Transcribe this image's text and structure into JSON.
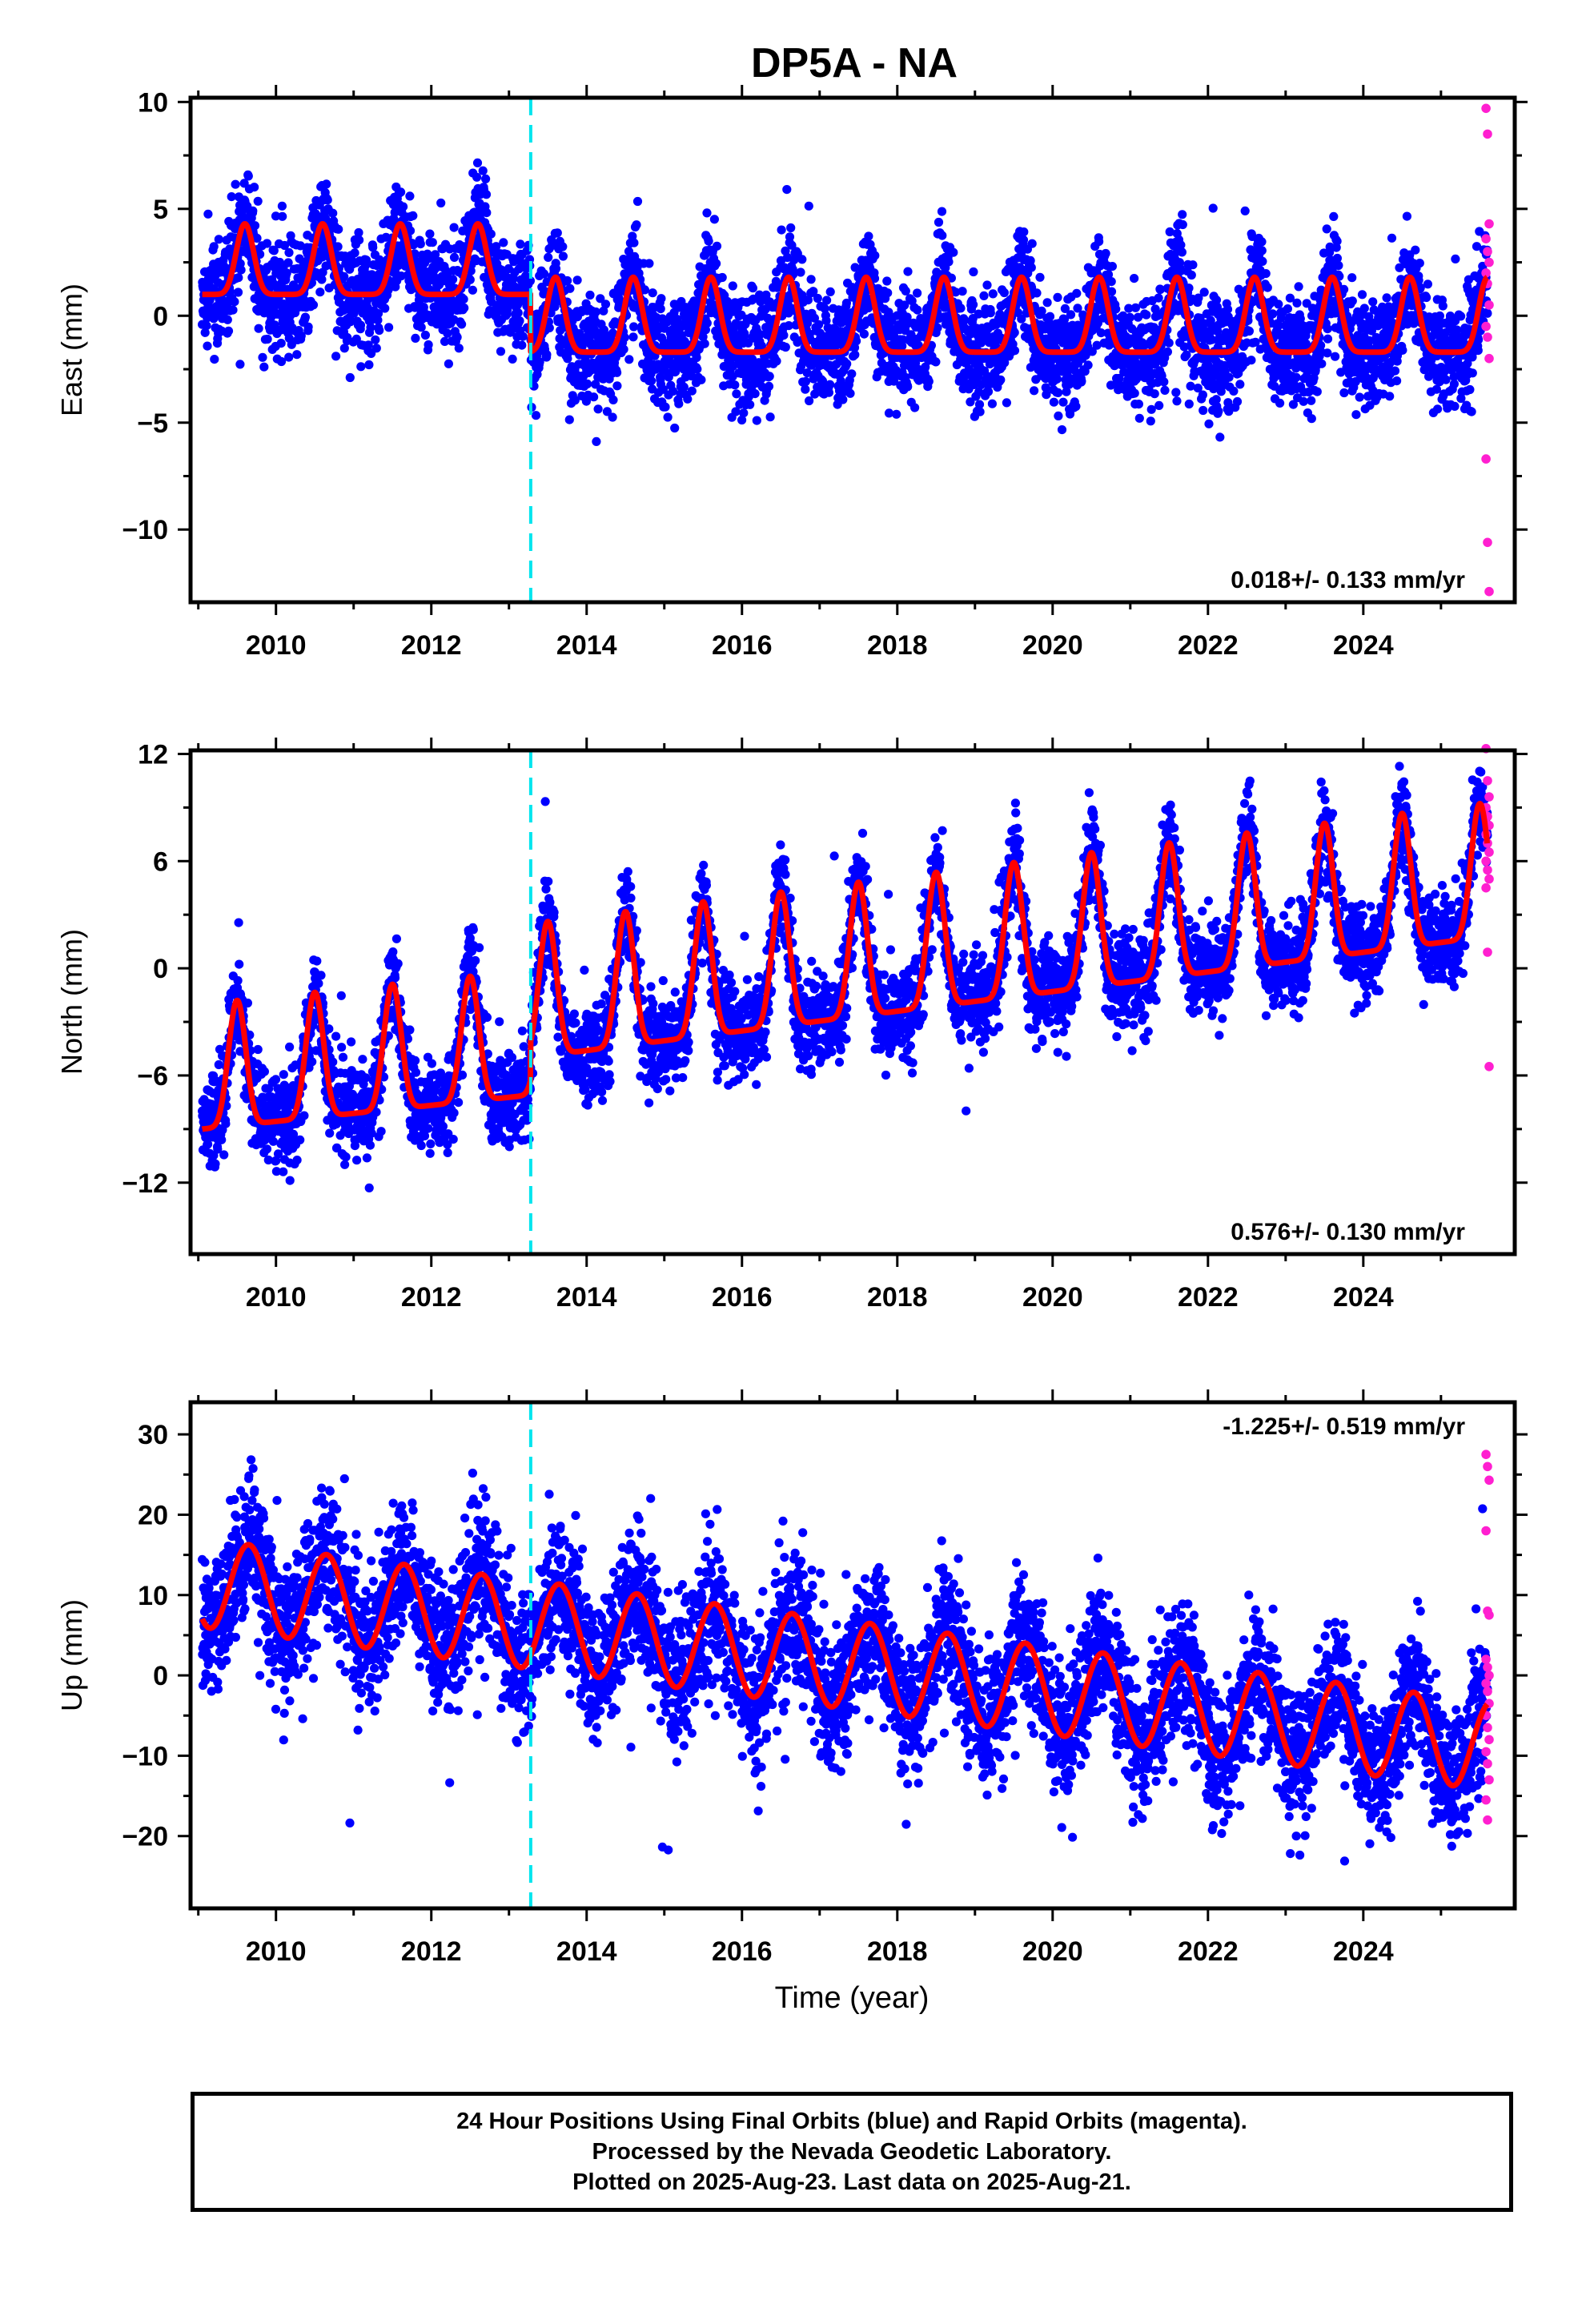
{
  "title": "DP5A - NA",
  "xlabel": "Time (year)",
  "x_ticks": [
    "2010",
    "2012",
    "2014",
    "2016",
    "2018",
    "2020",
    "2022",
    "2024"
  ],
  "colors": {
    "final": "#0000ff",
    "rapid": "#ff1fd0",
    "model": "#ff0000",
    "break": "#00e5ee"
  },
  "caption": {
    "line1": "24 Hour Positions Using Final Orbits (blue) and Rapid Orbits (magenta).",
    "line2": "Processed by the Nevada Geodetic Laboratory.",
    "line3": "Plotted on 2025-Aug-23. Last data on 2025-Aug-21."
  },
  "chart_data": [
    {
      "type": "scatter",
      "ylabel": "East (mm)",
      "rate_label": "0.018+/- 0.133 mm/yr",
      "rate_position": "bottom-right",
      "xlim": [
        2008.9,
        2025.95
      ],
      "ylim": [
        -13.4,
        10.2
      ],
      "y_ticks": [
        10,
        5,
        0,
        -5,
        -10
      ],
      "y_tick_labels": [
        "10",
        "5",
        "0",
        "−5",
        "−10"
      ],
      "break_epoch": 2013.28,
      "model": {
        "segments": [
          {
            "from": 2009.05,
            "to": 2013.28,
            "base": 1.0,
            "peak": 4.3,
            "peak_phase": 0.6,
            "sharpness": 4
          },
          {
            "from": 2013.28,
            "to": 2025.6,
            "base": -1.7,
            "peak": 1.8,
            "peak_phase": 0.6,
            "sharpness": 4
          }
        ]
      },
      "scatter_sigma": 1.3,
      "daily_range": [
        -6.0,
        8.0
      ],
      "rapid_values": [
        9.7,
        8.5,
        4.3,
        3.6,
        3.0,
        2.5,
        2.0,
        1.5,
        0.5,
        -0.5,
        -1.0,
        -2.0,
        -6.7,
        -10.6,
        -12.9
      ]
    },
    {
      "type": "scatter",
      "ylabel": "North (mm)",
      "rate_label": "0.576+/- 0.130 mm/yr",
      "rate_position": "bottom-right",
      "xlim": [
        2008.9,
        2025.95
      ],
      "ylim": [
        -16.0,
        12.2
      ],
      "y_ticks": [
        12,
        6,
        0,
        -6,
        -12
      ],
      "y_tick_labels": [
        "12",
        "6",
        "0",
        "−6",
        "−12"
      ],
      "break_epoch": 2013.28,
      "model": {
        "segments": [
          {
            "from": 2009.05,
            "to": 2013.28,
            "start": -9.0,
            "rate": 0.45,
            "peak_amp": 7.0,
            "peak_phase": 0.5,
            "sharpness": 4
          },
          {
            "from": 2013.28,
            "to": 2025.6,
            "start": -5.0,
            "rate": 0.55,
            "peak_amp": 7.5,
            "peak_phase": 0.5,
            "sharpness": 4
          }
        ]
      },
      "scatter_sigma": 1.3,
      "daily_range": [
        -15.5,
        11.4
      ],
      "rapid_values": [
        12.3,
        10.5,
        9.6,
        9.0,
        8.5,
        8.0,
        7.5,
        7.0,
        6.5,
        6.0,
        5.5,
        5.0,
        4.5,
        0.9,
        -5.5
      ]
    },
    {
      "type": "scatter",
      "ylabel": "Up (mm)",
      "rate_label": "-1.225+/- 0.519 mm/yr",
      "rate_position": "top-right",
      "xlim": [
        2008.9,
        2025.95
      ],
      "ylim": [
        -29.0,
        34.0
      ],
      "y_ticks": [
        30,
        20,
        10,
        0,
        -10,
        -20
      ],
      "y_tick_labels": [
        "30",
        "20",
        "10",
        "0",
        "−10",
        "−20"
      ],
      "break_epoch": 2013.28,
      "model": {
        "segments": [
          {
            "from": 2009.05,
            "to": 2025.6,
            "start": 11.5,
            "rate": -1.225,
            "amp": 5.5,
            "peak_phase": 0.65
          }
        ]
      },
      "scatter_sigma": 4.3,
      "daily_range": [
        -28.0,
        32.5
      ],
      "rapid_values": [
        27.5,
        26.0,
        24.3,
        18.0,
        8.0,
        7.5,
        2.0,
        1.0,
        0.0,
        -1.0,
        -2.0,
        -3.5,
        -5.0,
        -6.5,
        -8.0,
        -9.5,
        -11.0,
        -13.0,
        -15.5,
        -18.0
      ]
    }
  ]
}
